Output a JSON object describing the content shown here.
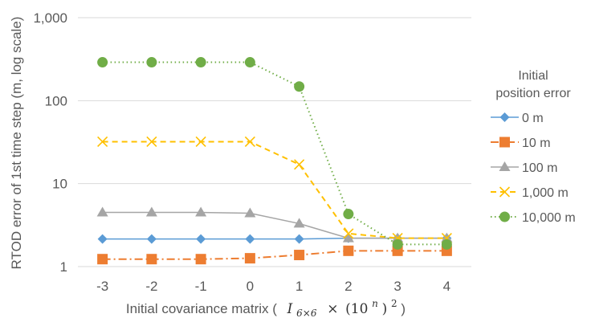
{
  "chart_data": {
    "type": "line",
    "x": [
      -3,
      -2,
      -1,
      0,
      1,
      2,
      3,
      4
    ],
    "x_tick_labels": [
      "-3",
      "-2",
      "-1",
      "0",
      "1",
      "2",
      "3",
      "4"
    ],
    "y_scale": "log",
    "ylim": [
      1,
      1000
    ],
    "y_ticks": [
      1,
      10,
      100,
      1000
    ],
    "y_tick_labels": [
      "1",
      "10",
      "100",
      "1,000"
    ],
    "ylabel": "RTOD error of 1st time step (m, log scale)",
    "xlabel": {
      "prefix": "Initial covariance matrix (",
      "matrix": "I",
      "matrix_sub": "6×6",
      "times": "×",
      "paren_open": "(10",
      "exponent": "n",
      "paren_close": ")",
      "power": "2",
      "suffix": ")"
    },
    "grid": "horizontal",
    "legend_position": "right",
    "legend_title": [
      "Initial",
      "position error"
    ],
    "series": [
      {
        "name": "0 m",
        "color": "#5B9BD5",
        "line": "solid",
        "marker": "diamond",
        "values": [
          2.15,
          2.15,
          2.15,
          2.15,
          2.15,
          2.2,
          2.2,
          2.2
        ]
      },
      {
        "name": "10 m",
        "color": "#ED7D31",
        "line": "dashdot",
        "marker": "square",
        "values": [
          1.23,
          1.23,
          1.23,
          1.26,
          1.38,
          1.55,
          1.55,
          1.55
        ]
      },
      {
        "name": "100 m",
        "color": "#A5A5A5",
        "line": "solid",
        "marker": "triangle",
        "values": [
          4.5,
          4.5,
          4.5,
          4.4,
          3.3,
          2.2,
          2.2,
          2.2
        ]
      },
      {
        "name": "1,000 m",
        "color": "#FFC000",
        "line": "dashed",
        "marker": "x",
        "values": [
          32,
          32,
          32,
          32,
          17,
          2.5,
          2.2,
          2.2
        ]
      },
      {
        "name": "10,000 m",
        "color": "#70AD47",
        "line": "dotted",
        "marker": "circle",
        "values": [
          290,
          290,
          290,
          290,
          148,
          4.3,
          1.85,
          1.85
        ]
      }
    ]
  }
}
